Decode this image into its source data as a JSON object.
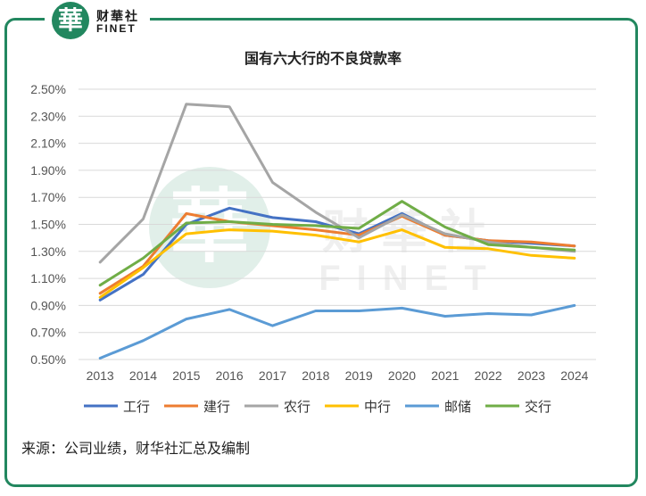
{
  "header": {
    "logo_glyph": "華",
    "logo_cn": "财華社",
    "logo_en": "FINET",
    "brand_color": "#22875f"
  },
  "watermark": {
    "glyph": "華",
    "cn": "财華社",
    "en": "FINET"
  },
  "source_note": "来源：公司业绩，财华社汇总及编制",
  "chart_data": {
    "type": "line",
    "title": "国有六大行的不良贷款率",
    "xlabel": "",
    "ylabel": "",
    "x": [
      "2013",
      "2014",
      "2015",
      "2016",
      "2017",
      "2018",
      "2019",
      "2020",
      "2021",
      "2022",
      "2023",
      "2024"
    ],
    "ylim": [
      0.5,
      2.5
    ],
    "yticks": [
      "0.50%",
      "0.70%",
      "0.90%",
      "1.10%",
      "1.30%",
      "1.50%",
      "1.70%",
      "1.90%",
      "2.10%",
      "2.30%",
      "2.50%"
    ],
    "grid": true,
    "legend_position": "bottom",
    "series": [
      {
        "name": "工行",
        "color": "#4472c4",
        "values": [
          0.94,
          1.13,
          1.5,
          1.62,
          1.55,
          1.52,
          1.43,
          1.58,
          1.42,
          1.38,
          1.36,
          1.34
        ]
      },
      {
        "name": "建行",
        "color": "#ed7d31",
        "values": [
          0.99,
          1.19,
          1.58,
          1.52,
          1.49,
          1.46,
          1.42,
          1.56,
          1.42,
          1.38,
          1.37,
          1.34
        ]
      },
      {
        "name": "农行",
        "color": "#a5a5a5",
        "values": [
          1.22,
          1.54,
          2.39,
          2.37,
          1.81,
          1.59,
          1.4,
          1.57,
          1.43,
          1.37,
          1.33,
          1.3
        ]
      },
      {
        "name": "中行",
        "color": "#ffc000",
        "values": [
          0.96,
          1.18,
          1.43,
          1.46,
          1.45,
          1.42,
          1.37,
          1.46,
          1.33,
          1.32,
          1.27,
          1.25
        ]
      },
      {
        "name": "邮储",
        "color": "#5b9bd5",
        "values": [
          0.51,
          0.64,
          0.8,
          0.87,
          0.75,
          0.86,
          0.86,
          0.88,
          0.82,
          0.84,
          0.83,
          0.9
        ]
      },
      {
        "name": "交行",
        "color": "#70ad47",
        "values": [
          1.05,
          1.25,
          1.51,
          1.52,
          1.5,
          1.49,
          1.47,
          1.67,
          1.48,
          1.35,
          1.33,
          1.31
        ]
      }
    ]
  }
}
